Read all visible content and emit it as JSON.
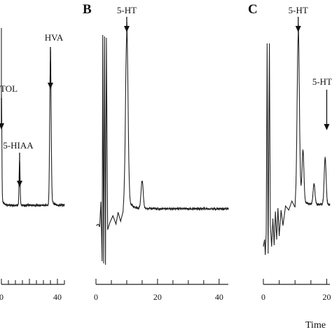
{
  "figure": {
    "panels": [
      "",
      "B",
      "C"
    ],
    "axis_title": "Time"
  },
  "chart_data": [
    {
      "type": "line",
      "panel": "",
      "xlim": [
        0,
        45
      ],
      "x_ticks": [
        0,
        20,
        40
      ],
      "x_tick_labels": [
        "0",
        "",
        "40"
      ],
      "annotations": [
        {
          "label": "TOL",
          "x": 0
        },
        {
          "label": "5-HIAA",
          "x": 13
        },
        {
          "label": "HVA",
          "x": 35
        }
      ],
      "peaks": [
        {
          "x": 0,
          "height": 0.62,
          "width": 0.3
        },
        {
          "x": 13,
          "height": 0.26,
          "width": 0.35
        },
        {
          "x": 35,
          "height": 0.86,
          "width": 0.5
        }
      ]
    },
    {
      "type": "line",
      "panel": "B",
      "xlim": [
        0,
        43
      ],
      "x_ticks": [
        0,
        20,
        40
      ],
      "x_tick_labels": [
        "0",
        "20",
        "40"
      ],
      "annotations": [
        {
          "label": "5-HT",
          "x": 10
        }
      ],
      "peaks": [
        {
          "x": 10,
          "height": 1.0,
          "width": 0.4
        },
        {
          "x": 15,
          "height": 0.16,
          "width": 0.35
        }
      ]
    },
    {
      "type": "line",
      "panel": "C",
      "xlim": [
        0,
        21
      ],
      "x_ticks": [
        0,
        20
      ],
      "x_tick_labels": [
        "0",
        "20"
      ],
      "annotations": [
        {
          "label": "5-HT",
          "x": 11
        },
        {
          "label": "5-HT",
          "x": 20
        }
      ],
      "peaks": [
        {
          "x": 11,
          "height": 1.0,
          "width": 0.35
        },
        {
          "x": 12.5,
          "height": 0.3,
          "width": 0.3
        },
        {
          "x": 16,
          "height": 0.12,
          "width": 0.3
        },
        {
          "x": 19.5,
          "height": 0.28,
          "width": 0.3
        }
      ]
    }
  ]
}
